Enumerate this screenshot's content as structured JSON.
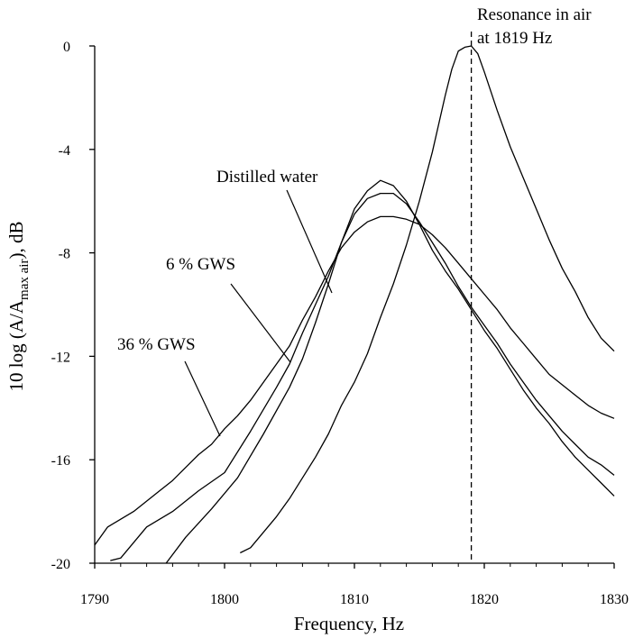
{
  "chart_data": {
    "type": "line",
    "xlabel": "Frequency, Hz",
    "ylabel_parts": [
      "10 log (A/A",
      "max air",
      "), dB"
    ],
    "xlim": [
      1790,
      1830
    ],
    "ylim": [
      -20,
      0
    ],
    "xticks": [
      1790,
      1800,
      1810,
      1820,
      1830
    ],
    "yticks": [
      0,
      -4,
      -8,
      -12,
      -16,
      -20
    ],
    "grid": false,
    "series": [
      {
        "name": "Resonance in air",
        "x": [
          1801.2,
          1802,
          1803,
          1804,
          1805,
          1806,
          1807,
          1808,
          1809,
          1810,
          1811,
          1812,
          1813,
          1814,
          1815,
          1816,
          1816.5,
          1817,
          1817.5,
          1818,
          1818.5,
          1819,
          1819.5,
          1820,
          1821,
          1822,
          1823,
          1824,
          1825,
          1826,
          1827,
          1828,
          1829,
          1830
        ],
        "y": [
          -19.6,
          -19.4,
          -18.8,
          -18.2,
          -17.5,
          -16.7,
          -15.9,
          -15.0,
          -13.9,
          -13.0,
          -11.9,
          -10.5,
          -9.2,
          -7.7,
          -6.0,
          -4.1,
          -3.0,
          -1.9,
          -0.9,
          -0.2,
          -0.05,
          0,
          -0.3,
          -1.0,
          -2.5,
          -3.9,
          -5.1,
          -6.3,
          -7.5,
          -8.6,
          -9.5,
          -10.5,
          -11.3,
          -11.8
        ]
      },
      {
        "name": "Distilled water",
        "x": [
          1795.5,
          1797,
          1799,
          1801,
          1803,
          1805,
          1806,
          1807,
          1808,
          1809,
          1810,
          1811,
          1812,
          1813,
          1814,
          1815,
          1816,
          1817,
          1818,
          1819,
          1820,
          1821,
          1822,
          1823,
          1824,
          1825,
          1826,
          1827,
          1828,
          1829,
          1830
        ],
        "y": [
          -20,
          -19.0,
          -17.9,
          -16.7,
          -15.0,
          -13.2,
          -12.1,
          -10.7,
          -9.2,
          -7.6,
          -6.3,
          -5.6,
          -5.2,
          -5.4,
          -6.0,
          -6.9,
          -7.9,
          -8.7,
          -9.4,
          -10.2,
          -11.0,
          -11.7,
          -12.5,
          -13.3,
          -14.0,
          -14.6,
          -15.3,
          -15.9,
          -16.4,
          -16.9,
          -17.4
        ]
      },
      {
        "name": "6 % GWS",
        "x": [
          1791.2,
          1792,
          1794,
          1796,
          1798,
          1800,
          1802,
          1804,
          1805,
          1806,
          1807,
          1808,
          1809,
          1810,
          1811,
          1812,
          1813,
          1814,
          1815,
          1816,
          1817,
          1818,
          1819,
          1820,
          1821,
          1822,
          1823,
          1824,
          1825,
          1826,
          1827,
          1828,
          1829,
          1830
        ],
        "y": [
          -19.9,
          -19.8,
          -18.6,
          -18.0,
          -17.2,
          -16.5,
          -14.9,
          -13.2,
          -12.3,
          -11.1,
          -10.0,
          -8.9,
          -7.6,
          -6.5,
          -5.9,
          -5.7,
          -5.7,
          -6.1,
          -6.8,
          -7.6,
          -8.4,
          -9.3,
          -10.1,
          -10.8,
          -11.5,
          -12.3,
          -13.0,
          -13.7,
          -14.3,
          -14.9,
          -15.4,
          -15.9,
          -16.2,
          -16.6
        ]
      },
      {
        "name": "36 % GWS",
        "x": [
          1790,
          1791,
          1792,
          1793,
          1794,
          1795,
          1796,
          1797,
          1798,
          1799,
          1800,
          1801,
          1802,
          1803,
          1804,
          1805,
          1806,
          1807,
          1808,
          1809,
          1810,
          1811,
          1812,
          1813,
          1814,
          1815,
          1816,
          1817,
          1818,
          1819,
          1820,
          1821,
          1822,
          1823,
          1824,
          1825,
          1826,
          1827,
          1828,
          1829,
          1830
        ],
        "y": [
          -19.3,
          -18.6,
          -18.3,
          -18.0,
          -17.6,
          -17.2,
          -16.8,
          -16.3,
          -15.8,
          -15.4,
          -14.8,
          -14.3,
          -13.7,
          -13.0,
          -12.3,
          -11.6,
          -10.6,
          -9.7,
          -8.7,
          -7.8,
          -7.2,
          -6.8,
          -6.6,
          -6.6,
          -6.7,
          -6.9,
          -7.3,
          -7.8,
          -8.4,
          -9.0,
          -9.6,
          -10.2,
          -10.9,
          -11.5,
          -12.1,
          -12.7,
          -13.1,
          -13.5,
          -13.9,
          -14.2,
          -14.4
        ]
      }
    ],
    "reference_line": {
      "x": 1819,
      "style": "dashed"
    },
    "annotations": {
      "air_line1": "Resonance in air",
      "air_line2": "at 1819 Hz",
      "water": "Distilled water",
      "gws6": "6 % GWS",
      "gws36": "36 % GWS"
    }
  }
}
